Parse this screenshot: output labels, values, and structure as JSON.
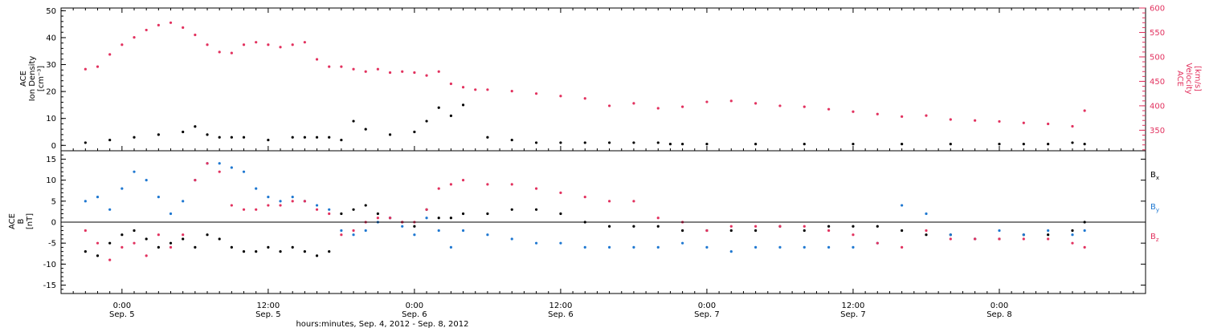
{
  "chart_data": [
    {
      "type": "scatter",
      "panel": "top",
      "ylabel_left": [
        "ACE",
        "Ion Density",
        "[cm⁻³]"
      ],
      "ylabel_right": [
        "ACE",
        "Velocity",
        "[km/s]"
      ],
      "ylim_left": [
        -2,
        51
      ],
      "ylim_right": [
        308,
        600
      ],
      "yticks_left": [
        "0",
        "10",
        "20",
        "30",
        "40",
        "50"
      ],
      "yticks_right": [
        "350",
        "400",
        "450",
        "500",
        "550",
        "600"
      ],
      "series": [
        {
          "key": "density",
          "color": "#000000",
          "axis": "left",
          "x_hours": [
            -3,
            -1,
            1,
            3,
            5,
            6,
            7,
            8,
            9,
            10,
            12,
            14,
            15,
            16,
            17,
            18,
            19,
            20,
            22,
            24,
            25,
            26,
            27,
            28,
            30,
            32,
            34,
            36,
            38,
            40,
            42,
            44,
            45,
            46,
            48,
            52,
            56,
            60,
            64,
            68,
            72,
            74,
            76,
            78,
            79
          ],
          "values": [
            1,
            2,
            3,
            4,
            5,
            7,
            4,
            3,
            3,
            3,
            2,
            3,
            3,
            3,
            3,
            2,
            9,
            6,
            4,
            5,
            9,
            14,
            11,
            15,
            3,
            2,
            1,
            1,
            1,
            1,
            1,
            1,
            0.5,
            0.5,
            0.5,
            0.5,
            0.5,
            0.5,
            0.5,
            0.5,
            0.5,
            0.5,
            0.5,
            1,
            0.5
          ]
        },
        {
          "key": "velocity",
          "color": "#e2325f",
          "axis": "right",
          "x_hours": [
            -3,
            -2,
            -1,
            0,
            1,
            2,
            3,
            4,
            5,
            6,
            7,
            8,
            9,
            10,
            11,
            12,
            13,
            14,
            15,
            16,
            17,
            18,
            19,
            20,
            21,
            22,
            23,
            24,
            25,
            26,
            27,
            28,
            29,
            30,
            32,
            34,
            36,
            38,
            40,
            42,
            44,
            46,
            48,
            50,
            52,
            54,
            56,
            58,
            60,
            62,
            64,
            66,
            68,
            70,
            72,
            74,
            76,
            78,
            79
          ],
          "values": [
            475,
            480,
            505,
            525,
            540,
            555,
            565,
            570,
            560,
            545,
            525,
            510,
            508,
            525,
            530,
            525,
            520,
            525,
            530,
            495,
            480,
            480,
            475,
            470,
            475,
            468,
            470,
            468,
            462,
            470,
            445,
            438,
            433,
            433,
            430,
            425,
            420,
            415,
            400,
            405,
            395,
            398,
            408,
            410,
            405,
            400,
            398,
            393,
            388,
            383,
            378,
            380,
            372,
            370,
            368,
            365,
            363,
            358,
            390
          ]
        }
      ]
    },
    {
      "type": "scatter",
      "panel": "bottom",
      "ylabel": [
        "ACE",
        "B",
        "[nT]"
      ],
      "ylim": [
        -17,
        17
      ],
      "yticks": [
        "-15",
        "-10",
        "-5",
        "0",
        "5",
        "10",
        "15"
      ],
      "series": [
        {
          "key": "Bx",
          "name": "B",
          "sub": "x",
          "color": "#000000",
          "x_hours": [
            -3,
            -2,
            -1,
            0,
            1,
            2,
            3,
            4,
            5,
            6,
            7,
            8,
            9,
            10,
            11,
            12,
            13,
            14,
            15,
            16,
            17,
            18,
            19,
            20,
            21,
            22,
            23,
            24,
            25,
            26,
            27,
            28,
            30,
            32,
            34,
            36,
            38,
            40,
            42,
            44,
            46,
            48,
            50,
            52,
            54,
            56,
            58,
            60,
            62,
            64,
            66,
            68,
            70,
            72,
            74,
            76,
            78,
            79
          ],
          "values": [
            -7,
            -8,
            -5,
            -3,
            -2,
            -4,
            -6,
            -5,
            -4,
            -6,
            -3,
            -4,
            -6,
            -7,
            -7,
            -6,
            -7,
            -6,
            -7,
            -8,
            -7,
            2,
            3,
            4,
            2,
            1,
            0,
            -1,
            3,
            1,
            1,
            2,
            2,
            3,
            3,
            2,
            0,
            -1,
            -1,
            -1,
            -2,
            -2,
            -2,
            -2,
            -1,
            -2,
            -1,
            -1,
            -1,
            -2,
            -3,
            -3,
            -4,
            -4,
            -3,
            -3,
            -2,
            0
          ]
        },
        {
          "key": "By",
          "name": "B",
          "sub": "y",
          "color": "#1f78d1",
          "x_hours": [
            -3,
            -2,
            -1,
            0,
            1,
            2,
            3,
            4,
            5,
            6,
            7,
            8,
            9,
            10,
            11,
            12,
            13,
            14,
            15,
            16,
            17,
            18,
            19,
            20,
            21,
            22,
            23,
            24,
            25,
            26,
            27,
            28,
            30,
            32,
            34,
            36,
            38,
            40,
            42,
            44,
            46,
            48,
            50,
            52,
            54,
            56,
            58,
            60,
            62,
            64,
            66,
            68,
            70,
            72,
            74,
            76,
            78,
            79
          ],
          "values": [
            5,
            6,
            3,
            8,
            12,
            10,
            6,
            2,
            5,
            10,
            14,
            14,
            13,
            12,
            8,
            6,
            5,
            6,
            5,
            4,
            3,
            -2,
            -3,
            -2,
            0,
            1,
            -1,
            -3,
            1,
            -2,
            -6,
            -2,
            -3,
            -4,
            -5,
            -5,
            -6,
            -6,
            -6,
            -6,
            -5,
            -6,
            -7,
            -6,
            -6,
            -6,
            -6,
            -6,
            -5,
            4,
            2,
            -3,
            -4,
            -2,
            -3,
            -2,
            -3,
            -2
          ]
        },
        {
          "key": "Bz",
          "name": "B",
          "sub": "z",
          "color": "#e2325f",
          "x_hours": [
            -3,
            -2,
            -1,
            0,
            1,
            2,
            3,
            4,
            5,
            6,
            7,
            8,
            9,
            10,
            11,
            12,
            13,
            14,
            15,
            16,
            17,
            18,
            19,
            20,
            21,
            22,
            23,
            24,
            25,
            26,
            27,
            28,
            30,
            32,
            34,
            36,
            38,
            40,
            42,
            44,
            46,
            48,
            50,
            52,
            54,
            56,
            58,
            60,
            62,
            64,
            66,
            68,
            70,
            72,
            74,
            76,
            78,
            79
          ],
          "values": [
            -2,
            -5,
            -9,
            -6,
            -5,
            -8,
            -3,
            -6,
            -3,
            10,
            14,
            12,
            4,
            3,
            3,
            4,
            4,
            5,
            5,
            3,
            2,
            -3,
            -2,
            0,
            1,
            1,
            0,
            0,
            3,
            8,
            9,
            10,
            9,
            9,
            8,
            7,
            6,
            5,
            5,
            1,
            0,
            -2,
            -1,
            -1,
            -1,
            -1,
            -2,
            -3,
            -5,
            -6,
            -2,
            -4,
            -4,
            -4,
            -4,
            -4,
            -5,
            -6
          ]
        }
      ]
    }
  ],
  "x_axis": {
    "xlim_hours": [
      -5,
      84
    ],
    "ticks": [
      {
        "hour": 0,
        "time": "0:00",
        "date": "Sep. 5"
      },
      {
        "hour": 12,
        "time": "12:00",
        "date": "Sep. 5"
      },
      {
        "hour": 24,
        "time": "0:00",
        "date": "Sep. 6"
      },
      {
        "hour": 36,
        "time": "12:00",
        "date": "Sep. 6"
      },
      {
        "hour": 48,
        "time": "0:00",
        "date": "Sep. 7"
      },
      {
        "hour": 60,
        "time": "12:00",
        "date": "Sep. 7"
      },
      {
        "hour": 72,
        "time": "0:00",
        "date": "Sep. 8"
      }
    ],
    "xlabel": "hours:minutes, Sep.  4, 2012 - Sep.  8, 2012"
  },
  "colors": {
    "black": "#000000",
    "pink": "#e2325f",
    "blue": "#1f78d1"
  }
}
